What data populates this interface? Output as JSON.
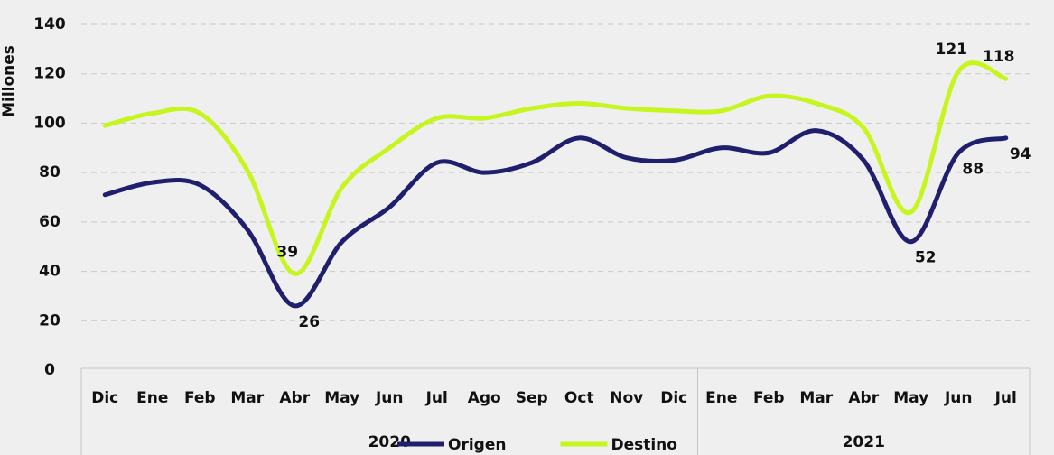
{
  "chart_data": {
    "type": "line",
    "y_label": "Millones",
    "categories": [
      "Dic",
      "Ene",
      "Feb",
      "Mar",
      "Abr",
      "May",
      "Jun",
      "Jul",
      "Ago",
      "Sep",
      "Oct",
      "Nov",
      "Dic",
      "Ene",
      "Feb",
      "Mar",
      "Abr",
      "May",
      "Jun",
      "Jul"
    ],
    "groups": [
      {
        "label": "2020",
        "count": 13
      },
      {
        "label": "2021",
        "count": 7
      }
    ],
    "series": [
      {
        "name": "Origen",
        "color": "#1f1f6e",
        "values": [
          71,
          76,
          75,
          57,
          26,
          52,
          66,
          84,
          80,
          84,
          94,
          86,
          85,
          90,
          88,
          97,
          85,
          52,
          88,
          94
        ],
        "value_labels": [
          null,
          null,
          null,
          null,
          "26",
          null,
          null,
          null,
          null,
          null,
          null,
          null,
          null,
          null,
          null,
          null,
          null,
          "52",
          "88",
          "94"
        ]
      },
      {
        "name": "Destino",
        "color": "#c6f520",
        "values": [
          99,
          104,
          104,
          81,
          39,
          74,
          90,
          102,
          102,
          106,
          108,
          106,
          105,
          105,
          111,
          108,
          98,
          64,
          121,
          118
        ],
        "value_labels": [
          null,
          null,
          null,
          null,
          "39",
          null,
          null,
          null,
          null,
          null,
          null,
          null,
          null,
          null,
          null,
          null,
          null,
          null,
          "121",
          "118"
        ]
      }
    ],
    "ylim": [
      0,
      140
    ],
    "yticks": [
      0,
      20,
      40,
      60,
      80,
      100,
      120,
      140
    ],
    "grid": true
  }
}
